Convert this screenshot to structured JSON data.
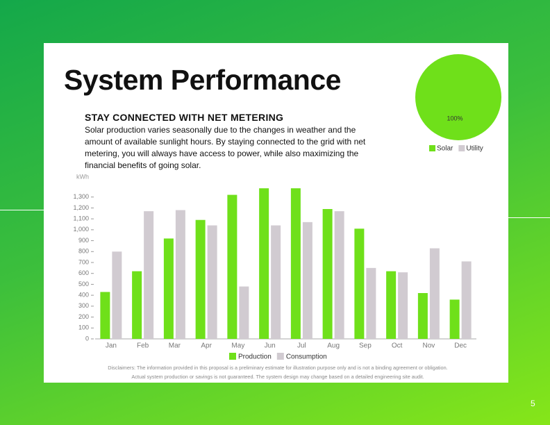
{
  "title": "System Performance",
  "heading": "STAY CONNECTED WITH NET METERING",
  "paragraph": "Solar production varies seasonally due to the changes in weather and the amount of available sunlight hours. By staying connected to the grid with net metering, you will always have access to power, while also maximizing the financial benefits of going solar.",
  "disclaimer": [
    "Disclaimers: The information provided in this proposal is a preliminary estimate for illustration purpose only and is not a binding agreement or obligation.",
    "Actual system production or savings is not guaranteed. The system design may change based on a detailed engineering site audit."
  ],
  "page_number": "5",
  "chart_data": [
    {
      "type": "bar",
      "y_label": "kWh",
      "categories": [
        "Jan",
        "Feb",
        "Mar",
        "Apr",
        "May",
        "Jun",
        "Jul",
        "Aug",
        "Sep",
        "Oct",
        "Nov",
        "Dec"
      ],
      "series": [
        {
          "name": "Production",
          "color": "#6fe01a",
          "values": [
            430,
            620,
            920,
            1090,
            1320,
            1380,
            1380,
            1190,
            1010,
            620,
            420,
            360
          ]
        },
        {
          "name": "Consumption",
          "color": "#d1cbd1",
          "values": [
            800,
            1170,
            1180,
            1040,
            480,
            1040,
            1070,
            1170,
            650,
            610,
            830,
            710
          ]
        }
      ],
      "ylim": [
        0,
        1400
      ],
      "yticks": [
        0,
        100,
        200,
        300,
        400,
        500,
        600,
        700,
        800,
        900,
        {
          "value": 1000,
          "label": "1,000"
        },
        {
          "value": 1100,
          "label": "1,100"
        },
        {
          "value": 1200,
          "label": "1,200"
        },
        {
          "value": 1300,
          "label": "1,300"
        }
      ],
      "grid": false,
      "legend": "bottom"
    },
    {
      "type": "pie",
      "categories": [
        "Solar",
        "Utility"
      ],
      "values": [
        100,
        0
      ],
      "value_labels": [
        "100%",
        null
      ],
      "colors": [
        "#6fe01a",
        "#d1cbd1"
      ],
      "legend": "bottom"
    }
  ]
}
